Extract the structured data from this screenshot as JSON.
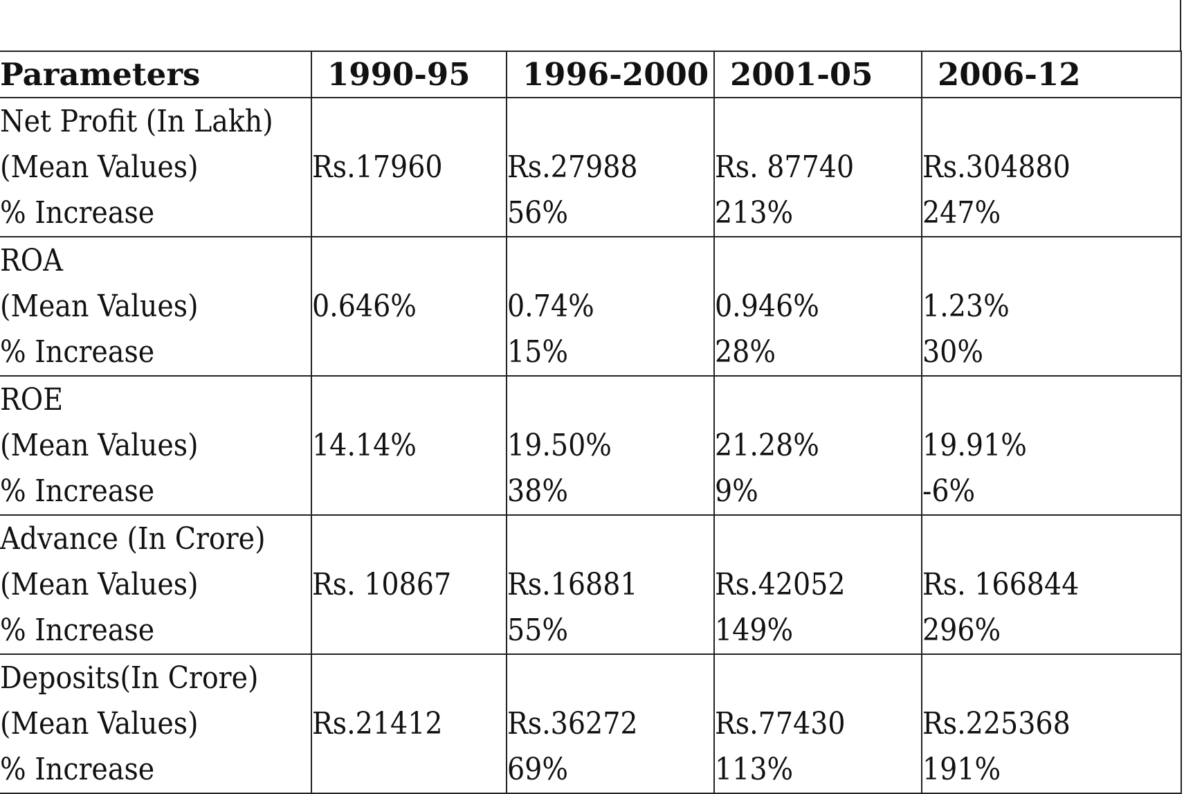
{
  "table": {
    "headers": [
      "Parameters",
      "1990-95",
      "1996-2000",
      "2001-05",
      "2006-12"
    ],
    "sublabels": [
      "(Mean Values)",
      "% Increase"
    ],
    "rows": [
      {
        "param": "Net Profit (In Lakh)",
        "values": [
          "Rs.17960",
          "Rs.27988",
          "Rs. 87740",
          "Rs.304880"
        ],
        "increases": [
          "",
          "56%",
          "213%",
          "247%"
        ]
      },
      {
        "param": "ROA",
        "values": [
          "0.646%",
          "0.74%",
          "0.946%",
          "1.23%"
        ],
        "increases": [
          "",
          "15%",
          "28%",
          "30%"
        ]
      },
      {
        "param": "ROE",
        "values": [
          "14.14%",
          "19.50%",
          "21.28%",
          "19.91%"
        ],
        "increases": [
          "",
          "38%",
          "9%",
          "-6%"
        ]
      },
      {
        "param": "Advance (In Crore)",
        "values": [
          "Rs. 10867",
          "Rs.16881",
          "Rs.42052",
          "Rs. 166844"
        ],
        "increases": [
          "",
          "55%",
          "149%",
          "296%"
        ]
      },
      {
        "param": "Deposits(In Crore)",
        "values": [
          "Rs.21412",
          "Rs.36272",
          "Rs.77430",
          "Rs.225368"
        ],
        "increases": [
          "",
          "69%",
          "113%",
          "191%"
        ]
      }
    ]
  }
}
